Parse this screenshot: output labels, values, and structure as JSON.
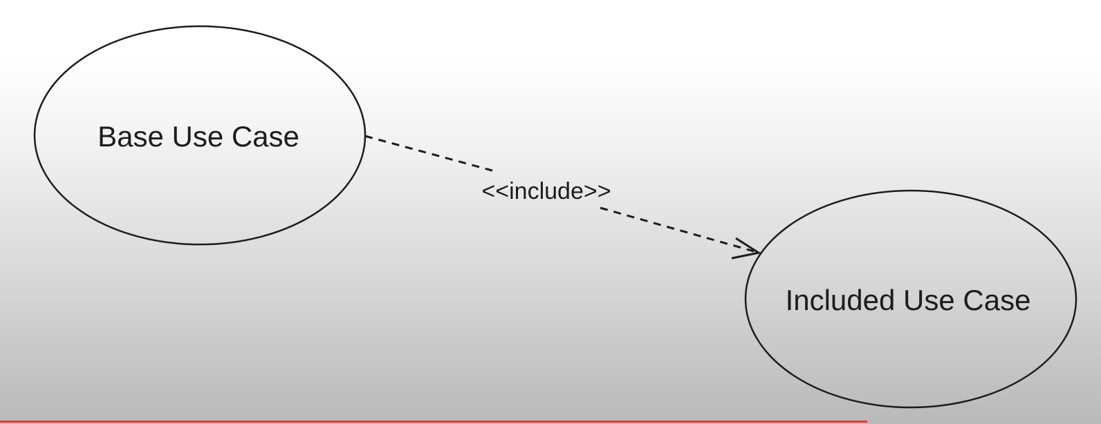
{
  "diagram": {
    "nodes": [
      {
        "id": "base",
        "label": "Base Use Case"
      },
      {
        "id": "included",
        "label": "Included Use Case"
      }
    ],
    "edges": [
      {
        "from": "base",
        "to": "included",
        "label": "<<include>>",
        "style": "dashed",
        "arrow": "open"
      }
    ]
  },
  "colors": {
    "stroke": "#1c1c1c",
    "bottom_bar": "#e53935"
  }
}
